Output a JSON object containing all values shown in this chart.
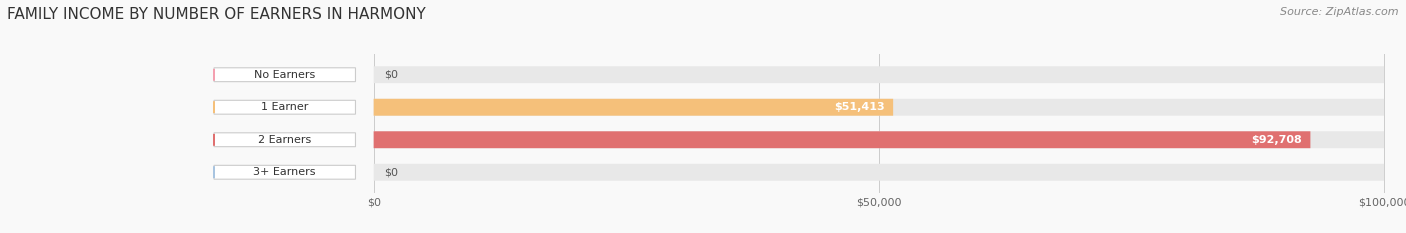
{
  "title": "FAMILY INCOME BY NUMBER OF EARNERS IN HARMONY",
  "source": "Source: ZipAtlas.com",
  "categories": [
    "No Earners",
    "1 Earner",
    "2 Earners",
    "3+ Earners"
  ],
  "values": [
    0,
    51413,
    92708,
    0
  ],
  "max_value": 100000,
  "bar_colors": [
    "#f4a0b0",
    "#f5c07a",
    "#e07070",
    "#a8c4e0"
  ],
  "bar_bg_color": "#e8e8e8",
  "background_color": "#f9f9f9",
  "value_labels": [
    "$0",
    "$51,413",
    "$92,708",
    "$0"
  ],
  "x_ticks": [
    0,
    50000,
    100000
  ],
  "x_tick_labels": [
    "$0",
    "$50,000",
    "$100,000"
  ],
  "title_fontsize": 11,
  "source_fontsize": 8,
  "bar_height": 0.52,
  "figsize": [
    14.06,
    2.33
  ]
}
